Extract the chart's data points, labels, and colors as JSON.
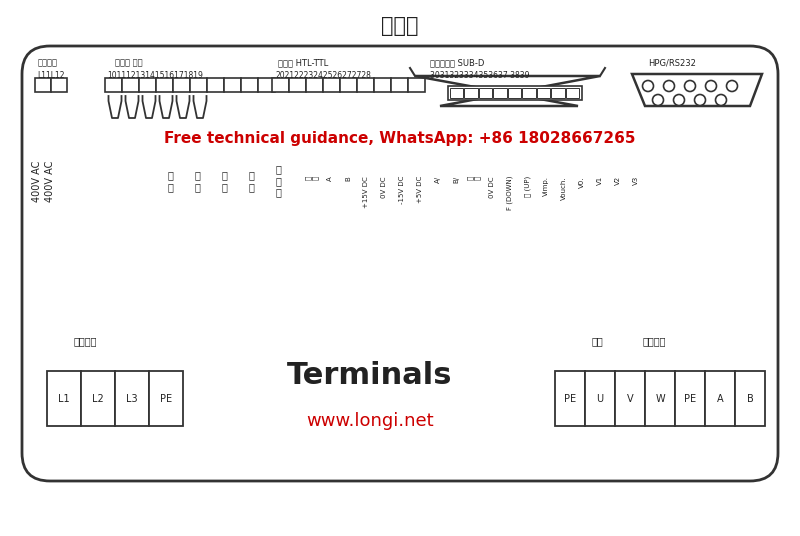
{
  "title": "端子图",
  "title_fontsize": 15,
  "bg_color": "#ffffff",
  "border_color": "#333333",
  "text_color": "#222222",
  "red_color": "#cc0000",
  "red_text": "Free technical guidance, WhatsApp: +86 18028667265",
  "website": "www.longi.net",
  "terminals_text": "Terminals",
  "label_ctrl": "控制电压",
  "label_relay": "继电器 输出",
  "label_encoder": "编码器 HTL-TTL",
  "label_digital": "数字输入或 SUB-D",
  "label_HPG": "HPG/RS232",
  "nums_L1L12": "L11L12",
  "nums_relay": "10111213141516171819",
  "nums_encoder": "20212223242526272728",
  "nums_digital": "3031323334353637 3839",
  "label_power": "电力供应",
  "label_motor": "电机",
  "label_brake": "制动电阻",
  "label_400V_1": "400V AC",
  "label_400V_2": "400V AC",
  "power_labels": [
    "L1",
    "L2",
    "L3",
    "PE"
  ],
  "motor_labels": [
    "PE",
    "U",
    "V",
    "W",
    "PE",
    "A",
    "B"
  ],
  "bottom_col_labels": [
    "准\n备",
    "制\n动",
    "运\n行",
    "门\n机",
    "可\n编\n程"
  ],
  "bottom_sublabels": [
    "屏\n蔽",
    "A",
    "B",
    "+15V DC",
    "0V DC",
    "-15V DC",
    "+5V DC",
    "A/",
    "B/",
    "屏\n蔽",
    "0V DC",
    "F (DOWN)",
    "上 (UP)",
    "Vimp.",
    "Vouch.",
    "V0.",
    "V1",
    "V2",
    "V3"
  ]
}
